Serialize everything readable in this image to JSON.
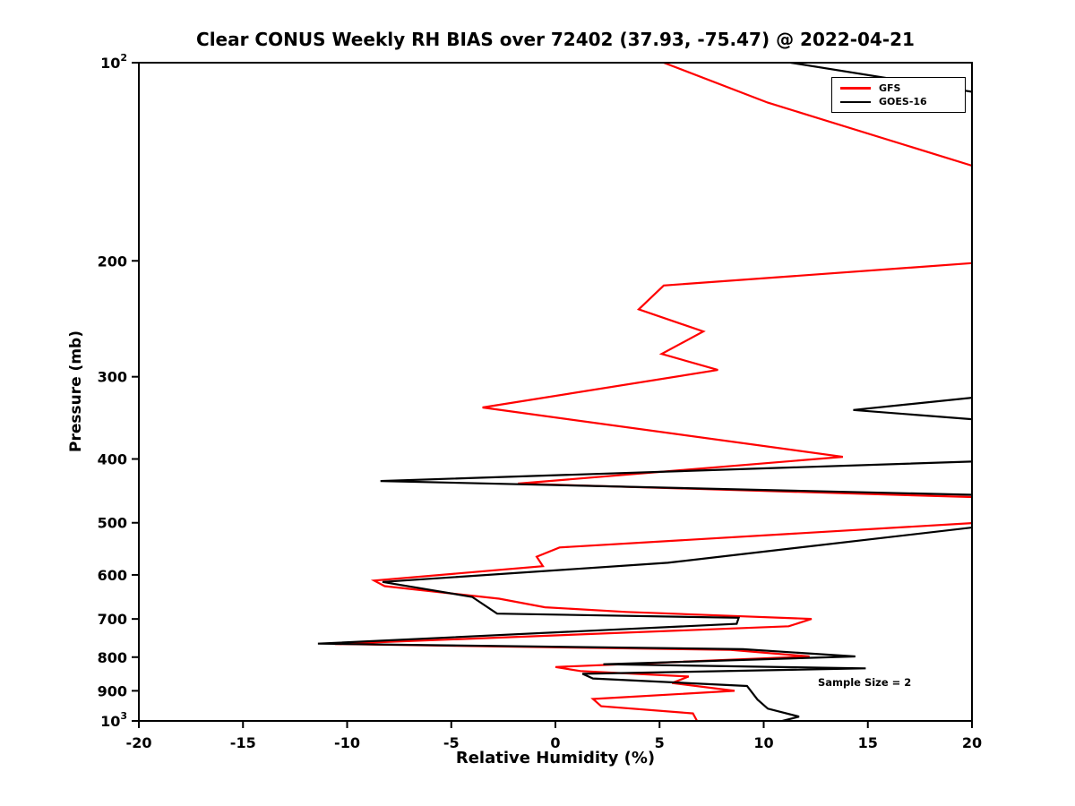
{
  "chart_data": {
    "type": "line",
    "title": "Clear CONUS Weekly RH BIAS over 72402 (37.93, -75.47) @ 2022-04-21",
    "xlabel": "Relative Humidity (%)",
    "ylabel": "Pressure (mb)",
    "xlim": [
      -20,
      20
    ],
    "ylim": [
      100,
      1000
    ],
    "y_scale": "log-reversed",
    "grid": false,
    "xticks": [
      -20,
      -15,
      -10,
      -5,
      0,
      5,
      10,
      15,
      20
    ],
    "yticks": [
      {
        "value": 100,
        "base": "10",
        "exp": "2"
      },
      {
        "value": 200,
        "label": "200"
      },
      {
        "value": 300,
        "label": "300"
      },
      {
        "value": 400,
        "label": "400"
      },
      {
        "value": 500,
        "label": "500"
      },
      {
        "value": 600,
        "label": "600"
      },
      {
        "value": 700,
        "label": "700"
      },
      {
        "value": 800,
        "label": "800"
      },
      {
        "value": 900,
        "label": "900"
      },
      {
        "value": 1000,
        "base": "10",
        "exp": "3"
      }
    ],
    "legend": {
      "position": "top-right",
      "entries": [
        {
          "label": "GFS",
          "color": "#ff0000"
        },
        {
          "label": "GOES-16",
          "color": "#000000"
        }
      ]
    },
    "annotation": {
      "text": "Sample Size = 2",
      "x": 12.6,
      "pressure": 875
    },
    "series": [
      {
        "name": "GFS",
        "color": "#ff0000",
        "points_format": "[pressure_mb, rh_bias_percent]",
        "points": [
          [
            100,
            5.2
          ],
          [
            115,
            10.2
          ],
          [
            150,
            22
          ],
          [
            200,
            21.5
          ],
          [
            218,
            5.2
          ],
          [
            237,
            4.0
          ],
          [
            256,
            7.1
          ],
          [
            277,
            5.1
          ],
          [
            293,
            7.8
          ],
          [
            334,
            -3.5
          ],
          [
            397,
            13.8
          ],
          [
            436,
            -1.8
          ],
          [
            458,
            21
          ],
          [
            470,
            20.1
          ],
          [
            500,
            20.3
          ],
          [
            545,
            0.2
          ],
          [
            563,
            -0.9
          ],
          [
            582,
            -0.6
          ],
          [
            612,
            -8.7
          ],
          [
            624,
            -8.2
          ],
          [
            652,
            -2.7
          ],
          [
            672,
            -0.5
          ],
          [
            683,
            3.4
          ],
          [
            700,
            12.3
          ],
          [
            718,
            11.2
          ],
          [
            764,
            -10.6
          ],
          [
            780,
            8.4
          ],
          [
            798,
            12.2
          ],
          [
            828,
            0.0
          ],
          [
            840,
            1.2
          ],
          [
            856,
            6.4
          ],
          [
            876,
            5.6
          ],
          [
            900,
            8.6
          ],
          [
            926,
            1.8
          ],
          [
            950,
            2.2
          ],
          [
            974,
            6.6
          ],
          [
            1000,
            6.8
          ]
        ]
      },
      {
        "name": "GOES-16",
        "color": "#000000",
        "points_format": "[pressure_mb, rh_bias_percent]",
        "points": [
          [
            100,
            11.3
          ],
          [
            112,
            21
          ],
          [
            122,
            25
          ],
          [
            318,
            22
          ],
          [
            337,
            14.3
          ],
          [
            352,
            22
          ],
          [
            380,
            23
          ],
          [
            403,
            20.6
          ],
          [
            432,
            -8.4
          ],
          [
            455,
            22
          ],
          [
            472,
            23
          ],
          [
            505,
            20.8
          ],
          [
            575,
            5.4
          ],
          [
            615,
            -8.3
          ],
          [
            648,
            -4.0
          ],
          [
            687,
            -2.8
          ],
          [
            697,
            8.8
          ],
          [
            712,
            8.7
          ],
          [
            763,
            -11.4
          ],
          [
            778,
            9.0
          ],
          [
            798,
            14.4
          ],
          [
            820,
            2.3
          ],
          [
            832,
            14.9
          ],
          [
            848,
            1.3
          ],
          [
            862,
            1.8
          ],
          [
            885,
            9.2
          ],
          [
            928,
            9.7
          ],
          [
            958,
            10.2
          ],
          [
            985,
            11.7
          ],
          [
            1000,
            10.9
          ]
        ]
      }
    ]
  }
}
